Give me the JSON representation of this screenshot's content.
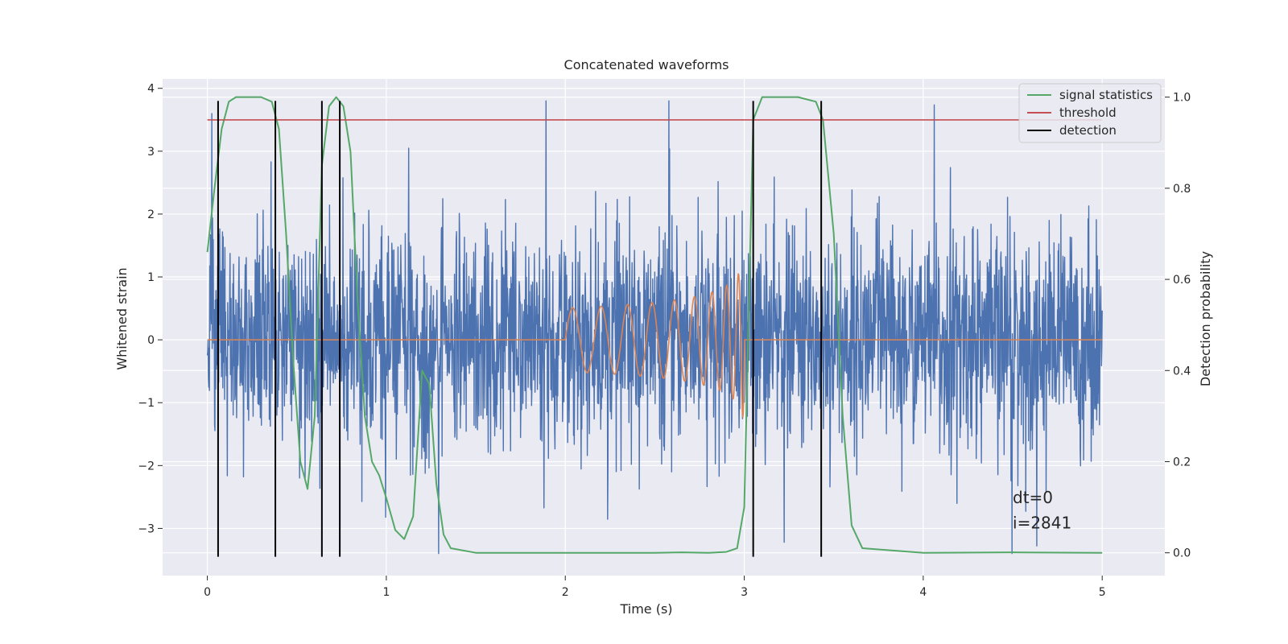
{
  "chart_data": {
    "type": "line",
    "title": "Concatenated waveforms",
    "xlabel": "Time (s)",
    "ylabel": "Whitened strain",
    "y2label": "Detection probability",
    "xlim": [
      -0.25,
      5.35
    ],
    "ylim": [
      -3.75,
      4.15
    ],
    "y2lim": [
      -0.05,
      1.04
    ],
    "xticks": [
      0,
      1,
      2,
      3,
      4,
      5
    ],
    "yticks": [
      -3,
      -2,
      -1,
      0,
      1,
      2,
      3,
      4
    ],
    "y2ticks": [
      0.0,
      0.2,
      0.4,
      0.6,
      0.8,
      1.0
    ],
    "xtick_labels": [
      "0",
      "1",
      "2",
      "3",
      "4",
      "5"
    ],
    "ytick_labels": [
      "−3",
      "−2",
      "−1",
      "0",
      "1",
      "2",
      "3",
      "4"
    ],
    "y2tick_labels": [
      "0.0",
      "0.2",
      "0.4",
      "0.6",
      "0.8",
      "1.0"
    ],
    "grid": true,
    "legend_position": "top-right",
    "colors": {
      "background": "#eaeaf2",
      "grid": "#ffffff",
      "noise": "#4c72b0",
      "signal": "#dd8452",
      "statistics": "#55a868",
      "threshold": "#c44e52",
      "detection": "#000000"
    },
    "series": [
      {
        "name": "",
        "kind": "noise",
        "axis": "left",
        "x_range": [
          0,
          5
        ],
        "amplitude_envelope": [
          -3.4,
          3.8
        ]
      },
      {
        "name": "",
        "kind": "signal",
        "axis": "left",
        "x_range": [
          0,
          5
        ],
        "chirp_start": 2.0,
        "chirp_end": 3.0,
        "peak_amplitude": 1.8
      },
      {
        "name": "signal statistics",
        "kind": "statistics",
        "axis": "right",
        "x": [
          0.0,
          0.04,
          0.08,
          0.12,
          0.16,
          0.2,
          0.3,
          0.36,
          0.4,
          0.44,
          0.48,
          0.52,
          0.56,
          0.6,
          0.64,
          0.68,
          0.72,
          0.76,
          0.8,
          0.84,
          0.88,
          0.92,
          0.96,
          1.0,
          1.05,
          1.1,
          1.15,
          1.2,
          1.24,
          1.28,
          1.32,
          1.36,
          1.5,
          2.0,
          2.5,
          2.65,
          2.8,
          2.9,
          2.96,
          3.0,
          3.05,
          3.1,
          3.3,
          3.4,
          3.44,
          3.5,
          3.55,
          3.6,
          3.66,
          4.0,
          4.5,
          5.0
        ],
        "y": [
          0.66,
          0.8,
          0.93,
          0.99,
          1.0,
          1.0,
          1.0,
          0.99,
          0.93,
          0.7,
          0.42,
          0.2,
          0.14,
          0.3,
          0.85,
          0.98,
          1.0,
          0.98,
          0.88,
          0.55,
          0.3,
          0.2,
          0.17,
          0.12,
          0.05,
          0.03,
          0.08,
          0.4,
          0.37,
          0.15,
          0.04,
          0.01,
          0.0,
          0.0,
          0.0,
          0.001,
          0.0,
          0.002,
          0.01,
          0.1,
          0.95,
          1.0,
          1.0,
          0.99,
          0.95,
          0.7,
          0.3,
          0.06,
          0.01,
          0.0,
          0.001,
          0.0
        ]
      },
      {
        "name": "threshold",
        "kind": "threshold",
        "axis": "right",
        "x": [
          0,
          5
        ],
        "y": [
          0.95,
          0.95
        ]
      },
      {
        "name": "detection",
        "kind": "detection",
        "axis": "left",
        "x": [
          0.06,
          0.38,
          0.64,
          0.74,
          3.05,
          3.43
        ],
        "y_range": [
          -3.45,
          3.8
        ]
      }
    ],
    "annotations": [
      {
        "text": "dt=0",
        "x": 4.5,
        "y": -2.6
      },
      {
        "text": "i=2841",
        "x": 4.5,
        "y": -3.0
      }
    ]
  }
}
